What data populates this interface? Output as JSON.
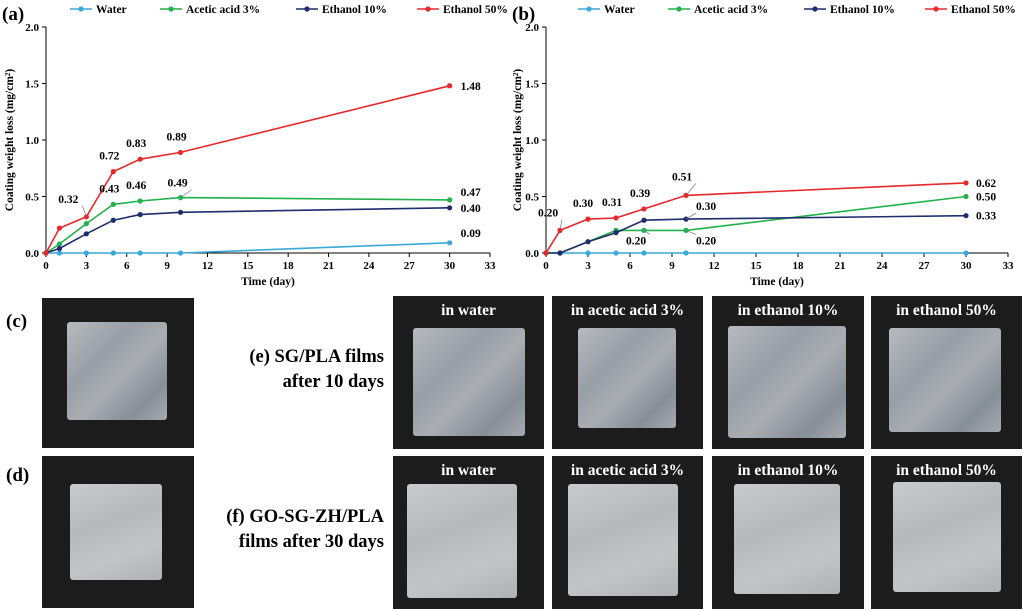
{
  "chart_data": [
    {
      "panel": "(a)",
      "type": "line",
      "xlabel": "Time (day)",
      "ylabel": "Coating weight loss (mg/cm²)",
      "xlim": [
        0,
        33
      ],
      "ylim": [
        0,
        2.0
      ],
      "xticks": [
        "0",
        "3",
        "6",
        "9",
        "12",
        "15",
        "18",
        "21",
        "24",
        "27",
        "30",
        "33"
      ],
      "yticks": [
        "0.0",
        "0.5",
        "1.0",
        "1.5",
        "2.0"
      ],
      "legend_position": "top",
      "series": [
        {
          "name": "Water",
          "color": "#3aa9d8",
          "x": [
            0,
            1,
            3,
            5,
            7,
            10,
            30
          ],
          "y": [
            0,
            0,
            0,
            0,
            0,
            0,
            0.09
          ]
        },
        {
          "name": "Acetic acid 3%",
          "color": "#22b14c",
          "x": [
            0,
            1,
            3,
            5,
            7,
            10,
            30
          ],
          "y": [
            0,
            0.08,
            0.26,
            0.43,
            0.46,
            0.49,
            0.47
          ]
        },
        {
          "name": "Ethanol 10%",
          "color": "#1f2c6e",
          "x": [
            0,
            1,
            3,
            5,
            7,
            10,
            30
          ],
          "y": [
            0,
            0.04,
            0.17,
            0.29,
            0.34,
            0.36,
            0.4
          ]
        },
        {
          "name": "Ethanol 50%",
          "color": "#e8272a",
          "x": [
            0,
            1,
            3,
            5,
            7,
            10,
            30
          ],
          "y": [
            0,
            0.22,
            0.32,
            0.72,
            0.83,
            0.89,
            1.48
          ]
        }
      ],
      "annotations": [
        {
          "text": "0.32",
          "x": 3,
          "y": 0.32
        },
        {
          "text": "0.72",
          "x": 5,
          "y": 0.72
        },
        {
          "text": "0.43",
          "x": 5,
          "y": 0.43
        },
        {
          "text": "0.83",
          "x": 7,
          "y": 0.83
        },
        {
          "text": "0.46",
          "x": 7,
          "y": 0.46
        },
        {
          "text": "0.89",
          "x": 10,
          "y": 0.89
        },
        {
          "text": "0.49",
          "x": 10,
          "y": 0.49
        },
        {
          "text": "1.48",
          "x": 30,
          "y": 1.48
        },
        {
          "text": "0.47",
          "x": 30,
          "y": 0.47
        },
        {
          "text": "0.40",
          "x": 30,
          "y": 0.4
        },
        {
          "text": "0.09",
          "x": 30,
          "y": 0.09
        }
      ]
    },
    {
      "panel": "(b)",
      "type": "line",
      "xlabel": "Time (day)",
      "ylabel": "Coating weight loss (mg/cm²)",
      "xlim": [
        0,
        33
      ],
      "ylim": [
        0,
        2.0
      ],
      "xticks": [
        "0",
        "3",
        "6",
        "9",
        "12",
        "15",
        "18",
        "21",
        "24",
        "27",
        "30",
        "33"
      ],
      "yticks": [
        "0.0",
        "0.5",
        "1.0",
        "1.5",
        "2.0"
      ],
      "legend_position": "top",
      "series": [
        {
          "name": "Water",
          "color": "#3aa9d8",
          "x": [
            0,
            1,
            3,
            5,
            7,
            10,
            30
          ],
          "y": [
            0,
            0,
            0,
            0,
            0,
            0,
            0
          ]
        },
        {
          "name": "Acetic acid 3%",
          "color": "#22b14c",
          "x": [
            0,
            1,
            3,
            5,
            7,
            10,
            30
          ],
          "y": [
            0,
            0,
            0.1,
            0.2,
            0.2,
            0.2,
            0.5
          ]
        },
        {
          "name": "Ethanol 10%",
          "color": "#1f2c6e",
          "x": [
            0,
            1,
            3,
            5,
            7,
            10,
            30
          ],
          "y": [
            0,
            0,
            0.1,
            0.18,
            0.29,
            0.3,
            0.33
          ]
        },
        {
          "name": "Ethanol 50%",
          "color": "#e8272a",
          "x": [
            0,
            1,
            3,
            5,
            7,
            10,
            30
          ],
          "y": [
            0,
            0.2,
            0.3,
            0.31,
            0.39,
            0.51,
            0.62
          ]
        }
      ],
      "annotations": [
        {
          "text": "0.20",
          "x": 1,
          "y": 0.2
        },
        {
          "text": "0.30",
          "x": 3,
          "y": 0.3
        },
        {
          "text": "0.31",
          "x": 5,
          "y": 0.31
        },
        {
          "text": "0.39",
          "x": 7,
          "y": 0.39
        },
        {
          "text": "0.51",
          "x": 10,
          "y": 0.51
        },
        {
          "text": "0.30",
          "x": 10,
          "y": 0.3
        },
        {
          "text": "0.20",
          "x": 7,
          "y": 0.2
        },
        {
          "text": "0.20",
          "x": 10,
          "y": 0.2
        },
        {
          "text": "0.62",
          "x": 30,
          "y": 0.62
        },
        {
          "text": "0.50",
          "x": 30,
          "y": 0.5
        },
        {
          "text": "0.33",
          "x": 30,
          "y": 0.33
        }
      ]
    }
  ],
  "photos": {
    "c_label": "(c)",
    "d_label": "(d)",
    "e_label": "(e) SG/PLA films",
    "e_label2": "after 10 days",
    "f_label": "(f) GO-SG-ZH/PLA",
    "f_label2": "films after 30 days",
    "captions": [
      "in water",
      "in acetic acid 3%",
      "in ethanol 10%",
      "in ethanol 50%"
    ]
  }
}
